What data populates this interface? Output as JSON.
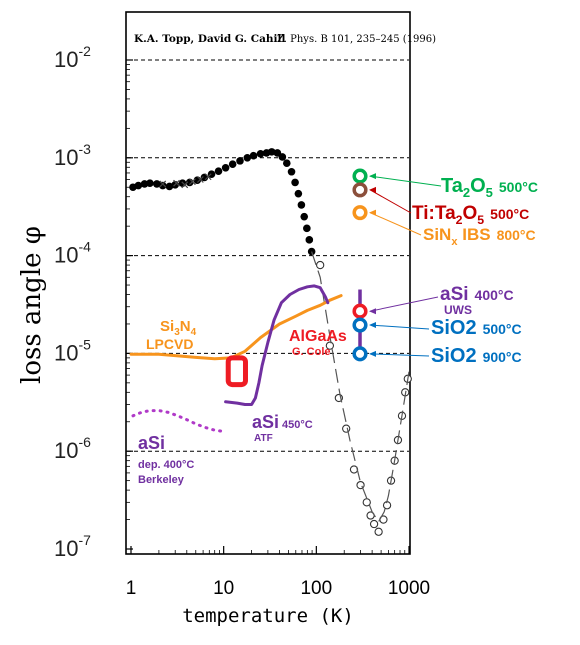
{
  "header": {
    "authors": "K.A. Topp, David G. Cahill",
    "reference": "Z. Phys. B 101, 235–245 (1996)"
  },
  "chart_data": {
    "type": "scatter",
    "xscale": "log",
    "yscale": "log",
    "xlim": [
      1,
      1000
    ],
    "ylim": [
      1e-07,
      0.02
    ],
    "xlabel": "temperature (K)",
    "ylabel": "loss angle φ",
    "xticks": [
      {
        "value": 1,
        "label": "1"
      },
      {
        "value": 10,
        "label": "10"
      },
      {
        "value": 100,
        "label": "100"
      },
      {
        "value": 1000,
        "label": "1000"
      }
    ],
    "yticks": [
      {
        "value": 1e-07,
        "mant": "10",
        "exp": "-7"
      },
      {
        "value": 1e-06,
        "mant": "10",
        "exp": "-6"
      },
      {
        "value": 1e-05,
        "mant": "10",
        "exp": "-5"
      },
      {
        "value": 0.0001,
        "mant": "10",
        "exp": "-4"
      },
      {
        "value": 0.001,
        "mant": "10",
        "exp": "-3"
      },
      {
        "value": 0.01,
        "mant": "10",
        "exp": "-2"
      }
    ],
    "dashed_gridlines": [
      1e-06,
      1e-05,
      0.0001,
      0.001,
      0.01
    ],
    "series": [
      {
        "style": "filled-dots",
        "color": "#000000",
        "points": [
          [
            1.05,
            0.0005
          ],
          [
            1.2,
            0.00052
          ],
          [
            1.4,
            0.00054
          ],
          [
            1.6,
            0.00055
          ],
          [
            1.9,
            0.00054
          ],
          [
            2.2,
            0.00052
          ],
          [
            2.6,
            0.00051
          ],
          [
            3.0,
            0.00053
          ],
          [
            3.6,
            0.00055
          ],
          [
            4.3,
            0.00056
          ],
          [
            5.2,
            0.00059
          ],
          [
            6.2,
            0.00063
          ],
          [
            7.4,
            0.00068
          ],
          [
            8.8,
            0.00073
          ],
          [
            10.5,
            0.00079
          ],
          [
            12.5,
            0.00086
          ],
          [
            15,
            0.00093
          ],
          [
            18,
            0.001
          ],
          [
            21,
            0.00105
          ],
          [
            25,
            0.0011
          ],
          [
            29,
            0.00112
          ],
          [
            33,
            0.00115
          ],
          [
            38,
            0.00112
          ],
          [
            43,
            0.00102
          ],
          [
            48,
            0.00088
          ],
          [
            54,
            0.00072
          ],
          [
            59,
            0.00056
          ],
          [
            64,
            0.00043
          ],
          [
            69,
            0.00033
          ],
          [
            74,
            0.00025
          ],
          [
            79,
            0.00019
          ],
          [
            84,
            0.000145
          ],
          [
            89,
            0.00011
          ]
        ]
      },
      {
        "style": "small-crosses",
        "color": "#444444",
        "points": [
          [
            2.2,
            0.00054
          ],
          [
            3.1,
            0.00055
          ],
          [
            3.8,
            0.00053
          ],
          [
            4.6,
            0.00057
          ],
          [
            5.6,
            0.0006
          ],
          [
            6.8,
            0.00064
          ]
        ]
      },
      {
        "style": "open-circles-dashed",
        "color": "#333333",
        "points": [
          [
            110,
            8e-05
          ],
          [
            140,
            1.2e-05
          ],
          [
            175,
            3.5e-06
          ],
          [
            210,
            1.7e-06
          ],
          [
            255,
            6.5e-07
          ],
          [
            300,
            4.5e-07
          ],
          [
            350,
            3e-07
          ],
          [
            385,
            2.2e-07
          ],
          [
            420,
            1.8e-07
          ],
          [
            470,
            1.5e-07
          ],
          [
            530,
            2e-07
          ],
          [
            580,
            2.8e-07
          ],
          [
            640,
            5e-07
          ],
          [
            700,
            8e-07
          ],
          [
            760,
            1.3e-06
          ],
          [
            840,
            2.3e-06
          ],
          [
            910,
            4e-06
          ],
          [
            970,
            5.5e-06
          ]
        ]
      },
      {
        "style": "dash-trend",
        "color": "#555555",
        "points": [
          [
            89,
            0.00011
          ],
          [
            110,
            6e-05
          ],
          [
            140,
            1.5e-05
          ],
          [
            180,
            3.8e-06
          ],
          [
            230,
            1.3e-06
          ],
          [
            300,
            4.8e-07
          ],
          [
            400,
            2.4e-07
          ],
          [
            470,
            1.9e-07
          ],
          [
            540,
            2.4e-07
          ],
          [
            600,
            3.5e-07
          ],
          [
            700,
            8e-07
          ],
          [
            850,
            2.5e-06
          ],
          [
            1000,
            6.5e-06
          ]
        ]
      },
      {
        "style": "line",
        "color": "#f7941d",
        "points": [
          [
            1,
            9.8e-06
          ],
          [
            2,
            9.8e-06
          ],
          [
            3,
            9.5e-06
          ],
          [
            5,
            9.1e-06
          ],
          [
            8,
            8.8e-06
          ],
          [
            12,
            9e-06
          ],
          [
            17,
            1.05e-05
          ],
          [
            25,
            1.45e-05
          ],
          [
            40,
            2e-05
          ],
          [
            60,
            2.4e-05
          ],
          [
            80,
            2.75e-05
          ],
          [
            110,
            3.1e-05
          ],
          [
            140,
            3.5e-05
          ],
          [
            185,
            3.9e-05
          ]
        ]
      },
      {
        "style": "line",
        "color": "#7030a0",
        "points": [
          [
            10.5,
            3.2e-06
          ],
          [
            14,
            3.1e-06
          ],
          [
            17,
            3e-06
          ],
          [
            20,
            3e-06
          ],
          [
            22,
            3.5e-06
          ],
          [
            24,
            5e-06
          ],
          [
            26,
            7.5e-06
          ],
          [
            30,
            1.3e-05
          ],
          [
            35,
            2.2e-05
          ],
          [
            42,
            3.3e-05
          ],
          [
            52,
            4e-05
          ],
          [
            65,
            4.5e-05
          ],
          [
            80,
            4.8e-05
          ],
          [
            95,
            4.9e-05
          ],
          [
            110,
            4.7e-05
          ],
          [
            125,
            3.8e-05
          ],
          [
            133,
            3.3e-05
          ]
        ]
      },
      {
        "style": "dotted",
        "color": "#b03ac8",
        "points": [
          [
            1.05,
            2.3e-06
          ],
          [
            1.3,
            2.5e-06
          ],
          [
            1.6,
            2.6e-06
          ],
          [
            2.0,
            2.6e-06
          ],
          [
            2.5,
            2.5e-06
          ],
          [
            3.2,
            2.3e-06
          ],
          [
            4.0,
            2.1e-06
          ],
          [
            5.0,
            1.9e-06
          ],
          [
            6.3,
            1.75e-06
          ],
          [
            7.8,
            1.65e-06
          ],
          [
            9.5,
            1.6e-06
          ]
        ]
      }
    ],
    "markers": [
      {
        "key": "ta2o5",
        "x": 296,
        "y": 0.00065,
        "color": "#00b050",
        "label_main": "Ta",
        "sub": "2",
        "tail": "O",
        "sub2": "5",
        "temp": "500°C"
      },
      {
        "key": "titao",
        "x": 296,
        "y": 0.00047,
        "color": "#8b4f3b",
        "label_main": "Ti:Ta",
        "sub": "2",
        "tail": "O",
        "sub2": "5",
        "temp": "500°C"
      },
      {
        "key": "sinx",
        "x": 296,
        "y": 0.000275,
        "color": "#f7941d",
        "label_main": "SiN",
        "sub": "x",
        "tail": " IBS",
        "sub2": "",
        "temp": "800°C"
      },
      {
        "key": "asi_uws",
        "x": 296,
        "y": 2.7e-05,
        "color": "#ee1c24",
        "label_main": "aSi",
        "temp": "400°C",
        "extra": "UWS",
        "label_color": "#7030a0"
      },
      {
        "key": "sio2_500",
        "x": 296,
        "y": 1.95e-05,
        "color": "#0070c0",
        "label_main": "SiO2",
        "temp": "500°C"
      },
      {
        "key": "sio2_900",
        "x": 296,
        "y": 9.9e-06,
        "color": "#0070c0",
        "label_main": "SiO2",
        "temp": "900°C"
      }
    ],
    "uws_bar": {
      "x": 296,
      "y_low": 1e-05,
      "y_high": 4.5e-05,
      "color": "#7030a0"
    },
    "algaas_box": {
      "x0": 11.2,
      "x1": 17.2,
      "y_low": 4.8e-06,
      "y_high": 9e-06,
      "color": "#ee1c24"
    },
    "annotations": {
      "si3n4": {
        "main": "Si",
        "sub1": "3",
        "mid": "N",
        "sub2": "4",
        "line2": "LPCVD",
        "color": "#f7941d"
      },
      "algaas": {
        "line1": "AlGaAs",
        "line2": "G. Cole",
        "color": "#ee1c24"
      },
      "asi_atf": {
        "main": "aSi",
        "temp": "450°C",
        "line2": "ATF",
        "color": "#7030a0"
      },
      "asi_berk": {
        "main": "aSi",
        "line2": "dep. 400°C",
        "line3": "Berkeley",
        "color": "#7030a0"
      }
    }
  }
}
